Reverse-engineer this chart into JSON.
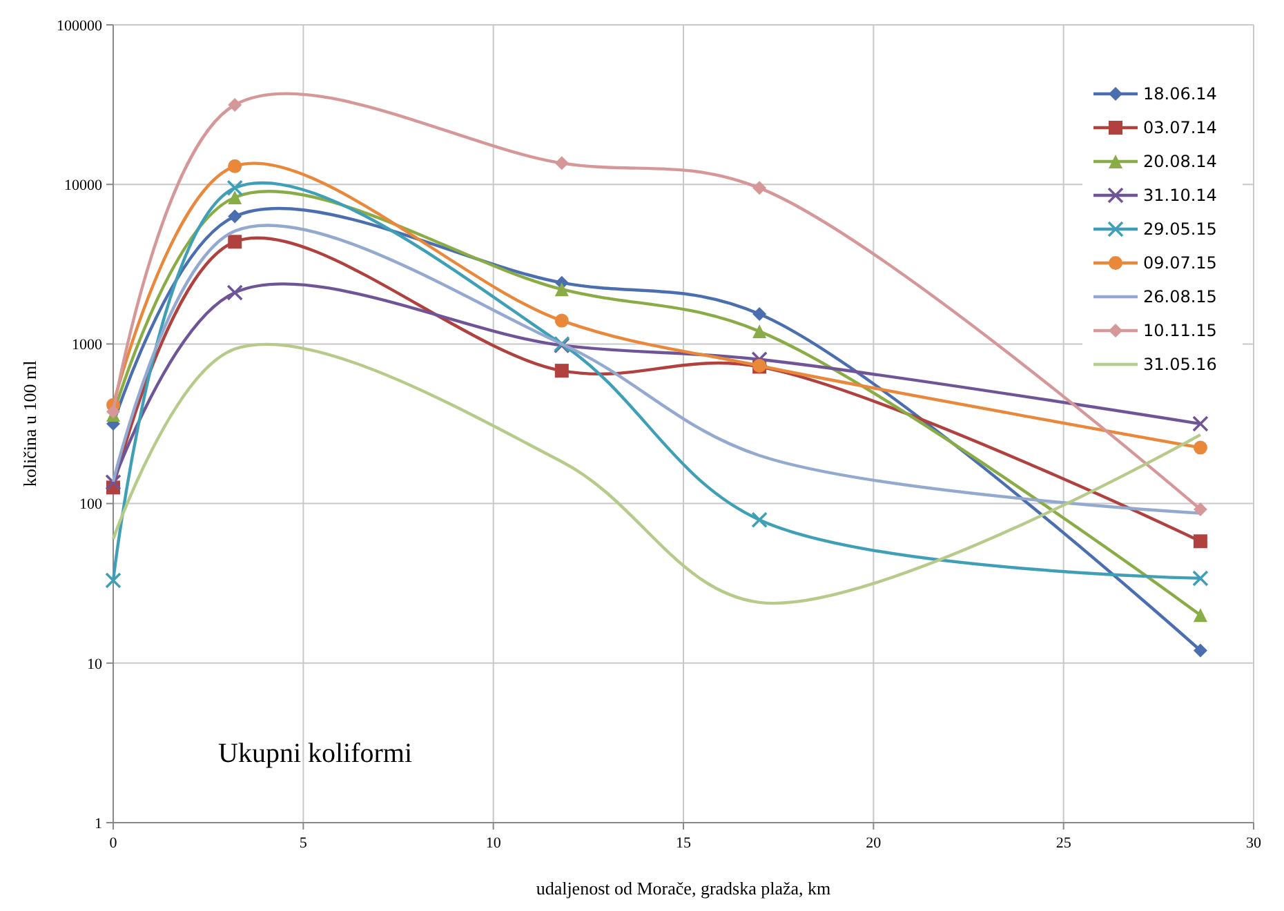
{
  "chart_data": {
    "type": "line",
    "xlabel": "udaljenost od Morače, gradska plaža, km",
    "ylabel": "količina u 100 ml",
    "annotations": [
      "Ukupni koliformi"
    ],
    "x": [
      0,
      3.2,
      11.8,
      17,
      28.6
    ],
    "xlim": [
      0,
      30
    ],
    "xticks": [
      0,
      5,
      10,
      15,
      20,
      25,
      30
    ],
    "ylim": [
      1,
      100000
    ],
    "yticks": [
      1,
      10,
      100,
      1000,
      10000,
      100000
    ],
    "log": "y",
    "grid": true,
    "legend": "top right",
    "line_style": "solid",
    "series": [
      {
        "name": "18.06.14",
        "color": "#4a6eb0",
        "marker": "diamond",
        "values": [
          316,
          6300,
          2420,
          1540,
          12
        ]
      },
      {
        "name": "03.07.14",
        "color": "#b0413e",
        "marker": "square",
        "values": [
          126,
          4370,
          680,
          720,
          58
        ]
      },
      {
        "name": "20.08.14",
        "color": "#8aac46",
        "marker": "triangle",
        "values": [
          360,
          8300,
          2200,
          1200,
          20
        ]
      },
      {
        "name": "31.10.14",
        "color": "#6f5597",
        "marker": "cross",
        "values": [
          136,
          2100,
          980,
          800,
          316
        ]
      },
      {
        "name": "29.05.15",
        "color": "#3f9fb6",
        "marker": "cross",
        "values": [
          33,
          9500,
          1000,
          79,
          34
        ]
      },
      {
        "name": "09.07.15",
        "color": "#e9883a",
        "marker": "circle",
        "values": [
          415,
          13000,
          1400,
          730,
          224
        ]
      },
      {
        "name": "26.08.15",
        "color": "#93a9cf",
        "marker": "none",
        "values": [
          137,
          5100,
          1000,
          200,
          87
        ]
      },
      {
        "name": "10.11.15",
        "color": "#d59797",
        "marker": "diamond",
        "values": [
          376,
          31500,
          13600,
          9500,
          92
        ]
      },
      {
        "name": "31.05.16",
        "color": "#b6ca8a",
        "marker": "none",
        "values": [
          60,
          930,
          183,
          24,
          270
        ]
      }
    ]
  }
}
